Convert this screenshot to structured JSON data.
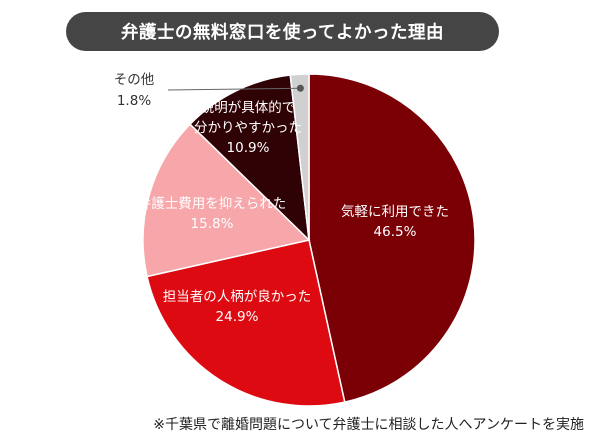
{
  "title": "弁護士の無料窓口を使ってよかった理由",
  "footnote": "※千葉県で離婚問題について弁護士に相談した人へアンケートを実施",
  "chart_data": {
    "type": "pie",
    "title": "弁護士の無料窓口を使ってよかった理由",
    "slices": [
      {
        "lines": [
          "気軽に利用できた"
        ],
        "value": 46.5,
        "value_label": "46.5%",
        "color": "#7a0006",
        "text_color": "#ffffff"
      },
      {
        "lines": [
          "担当者の人柄が良かった"
        ],
        "value": 24.9,
        "value_label": "24.9%",
        "color": "#dd0a12",
        "text_color": "#ffffff"
      },
      {
        "lines": [
          "弁護士費用を抑えられた"
        ],
        "value": 15.8,
        "value_label": "15.8%",
        "color": "#f7a6aa",
        "text_color": "#ffffff"
      },
      {
        "lines": [
          "説明が具体的で",
          "分かりやすかった"
        ],
        "value": 10.9,
        "value_label": "10.9%",
        "color": "#2f0205",
        "text_color": "#ffffff"
      },
      {
        "lines": [
          "その他"
        ],
        "value": 1.8,
        "value_label": "1.8%",
        "color": "#d0d0d0",
        "text_color": "#333333"
      }
    ]
  }
}
